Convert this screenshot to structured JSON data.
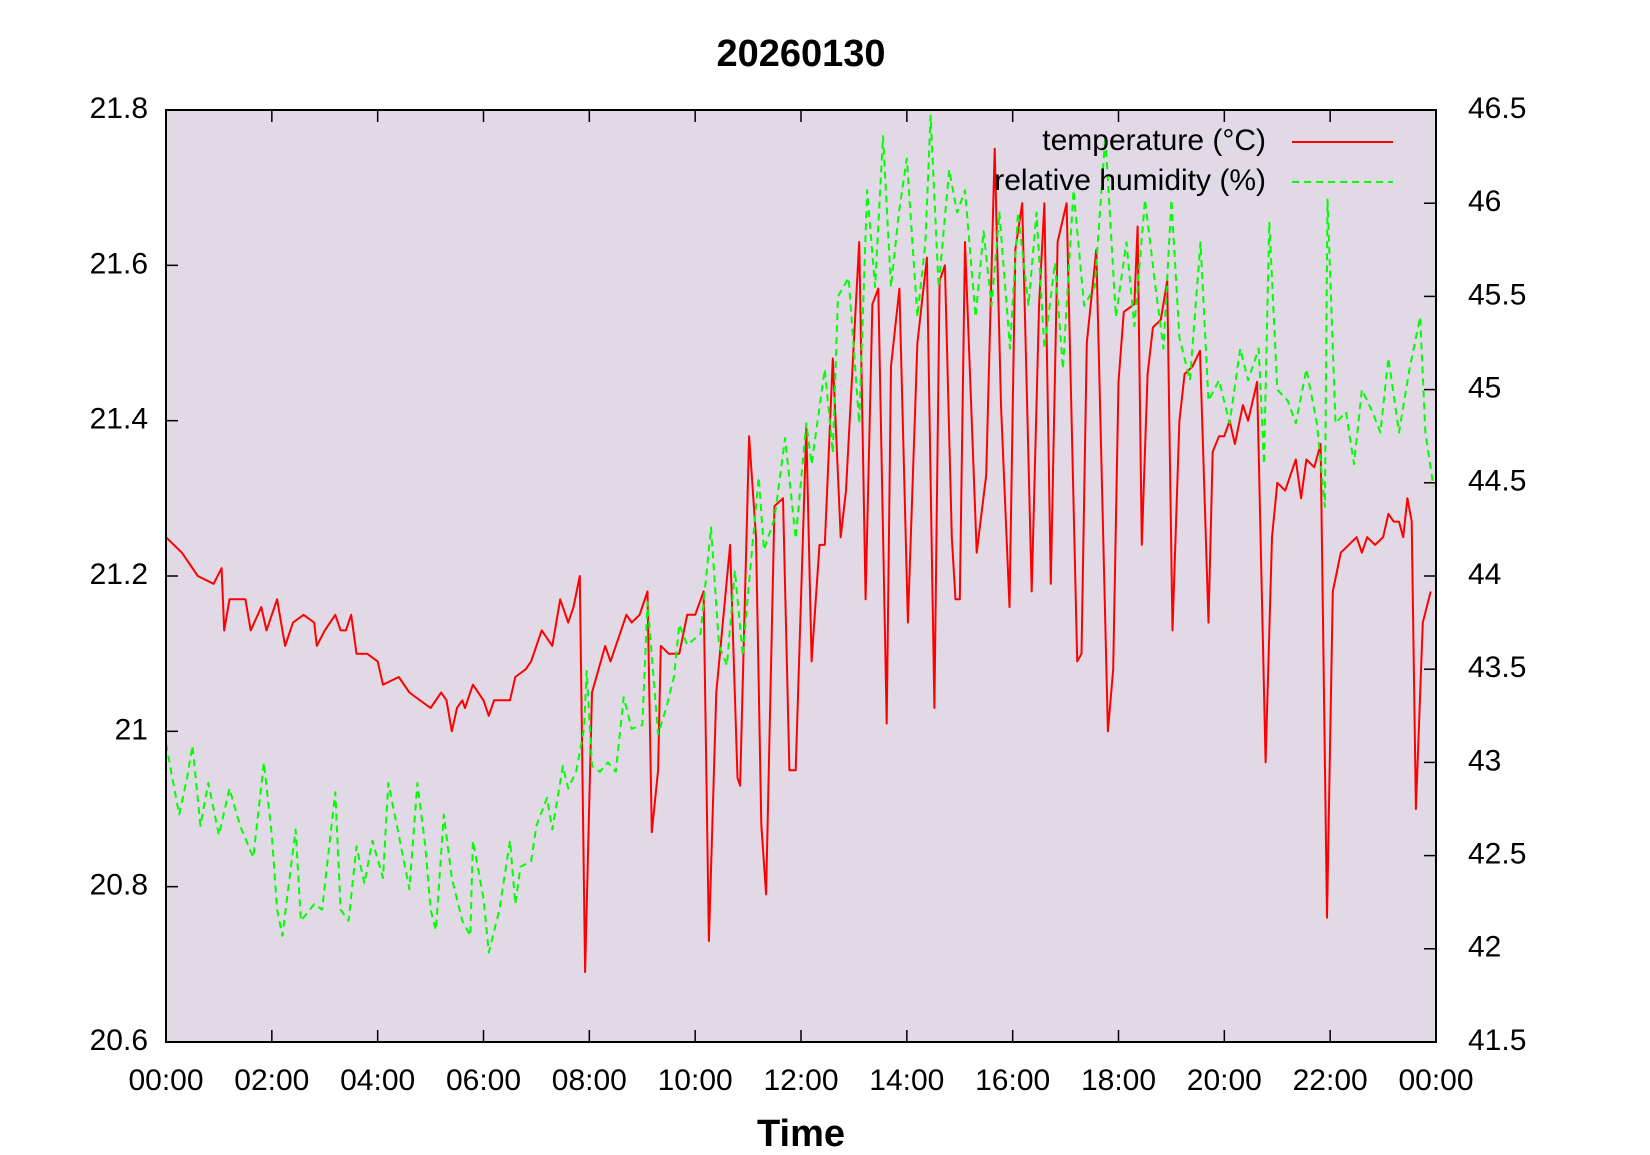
{
  "chart_data": {
    "type": "line",
    "title": "20260130",
    "xlabel": "Time",
    "xlim": [
      0,
      24
    ],
    "xticks": [
      {
        "value": 0,
        "label": "00:00"
      },
      {
        "value": 2,
        "label": "02:00"
      },
      {
        "value": 4,
        "label": "04:00"
      },
      {
        "value": 6,
        "label": "06:00"
      },
      {
        "value": 8,
        "label": "08:00"
      },
      {
        "value": 10,
        "label": "10:00"
      },
      {
        "value": 12,
        "label": "12:00"
      },
      {
        "value": 14,
        "label": "14:00"
      },
      {
        "value": 16,
        "label": "16:00"
      },
      {
        "value": 18,
        "label": "18:00"
      },
      {
        "value": 20,
        "label": "20:00"
      },
      {
        "value": 22,
        "label": "22:00"
      },
      {
        "value": 24,
        "label": "00:00"
      }
    ],
    "ylim": [
      20.6,
      21.8
    ],
    "yticks": [
      20.6,
      20.8,
      21,
      21.2,
      21.4,
      21.6,
      21.8
    ],
    "y2lim": [
      41.5,
      46.5
    ],
    "y2ticks": [
      41.5,
      42,
      42.5,
      43,
      43.5,
      44,
      44.5,
      45,
      45.5,
      46,
      46.5
    ],
    "legend": "top-right",
    "background": "#e1d9e6",
    "series": [
      {
        "name": "temperature (°C)",
        "color": "#ff0000",
        "dashed": false,
        "x": [
          0,
          0.3,
          0.6,
          0.9,
          1.05,
          1.1,
          1.2,
          1.5,
          1.6,
          1.8,
          1.9,
          2.1,
          2.25,
          2.4,
          2.6,
          2.8,
          2.85,
          3.0,
          3.2,
          3.3,
          3.4,
          3.5,
          3.6,
          3.8,
          4.0,
          4.1,
          4.4,
          4.6,
          4.8,
          5.0,
          5.2,
          5.3,
          5.4,
          5.5,
          5.6,
          5.65,
          5.8,
          6.0,
          6.1,
          6.2,
          6.5,
          6.6,
          6.8,
          6.9,
          7.1,
          7.3,
          7.45,
          7.6,
          7.7,
          7.82,
          7.92,
          8.05,
          8.3,
          8.4,
          8.5,
          8.7,
          8.8,
          8.95,
          9.1,
          9.18,
          9.3,
          9.35,
          9.5,
          9.7,
          9.85,
          10.0,
          10.16,
          10.26,
          10.4,
          10.66,
          10.8,
          10.85,
          11.02,
          11.15,
          11.25,
          11.34,
          11.5,
          11.66,
          11.78,
          11.9,
          12.1,
          12.2,
          12.35,
          12.45,
          12.6,
          12.75,
          12.85,
          13.1,
          13.22,
          13.35,
          13.46,
          13.62,
          13.7,
          13.86,
          14.02,
          14.2,
          14.38,
          14.52,
          14.62,
          14.72,
          14.85,
          14.92,
          15.0,
          15.1,
          15.2,
          15.32,
          15.5,
          15.66,
          15.78,
          15.94,
          16.05,
          16.18,
          16.36,
          16.5,
          16.6,
          16.72,
          16.85,
          17.02,
          17.22,
          17.3,
          17.4,
          17.58,
          17.8,
          17.9,
          18.0,
          18.1,
          18.3,
          18.36,
          18.44,
          18.55,
          18.65,
          18.8,
          18.92,
          19.02,
          19.15,
          19.25,
          19.4,
          19.54,
          19.7,
          19.78,
          19.9,
          20.0,
          20.1,
          20.2,
          20.35,
          20.45,
          20.62,
          20.78,
          20.9,
          21.0,
          21.15,
          21.35,
          21.45,
          21.55,
          21.7,
          21.82,
          21.94,
          22.05,
          22.2,
          22.35,
          22.5,
          22.6,
          22.7,
          22.85,
          23.0,
          23.1,
          23.2,
          23.3,
          23.38,
          23.46,
          23.54,
          23.62,
          23.75,
          23.9
        ],
        "values": [
          21.25,
          21.23,
          21.2,
          21.19,
          21.21,
          21.13,
          21.17,
          21.17,
          21.13,
          21.16,
          21.13,
          21.17,
          21.11,
          21.14,
          21.15,
          21.14,
          21.11,
          21.13,
          21.15,
          21.13,
          21.13,
          21.15,
          21.1,
          21.1,
          21.09,
          21.06,
          21.07,
          21.05,
          21.04,
          21.03,
          21.05,
          21.04,
          21.0,
          21.03,
          21.04,
          21.03,
          21.06,
          21.04,
          21.02,
          21.04,
          21.04,
          21.07,
          21.08,
          21.09,
          21.13,
          21.11,
          21.17,
          21.14,
          21.16,
          21.2,
          20.69,
          21.05,
          21.11,
          21.09,
          21.11,
          21.15,
          21.14,
          21.15,
          21.18,
          20.87,
          20.95,
          21.11,
          21.1,
          21.1,
          21.15,
          21.15,
          21.18,
          20.73,
          21.05,
          21.24,
          20.94,
          20.93,
          21.38,
          21.25,
          20.88,
          20.79,
          21.29,
          21.3,
          20.95,
          20.95,
          21.39,
          21.09,
          21.24,
          21.24,
          21.48,
          21.25,
          21.31,
          21.63,
          21.17,
          21.55,
          21.57,
          21.01,
          21.47,
          21.57,
          21.14,
          21.5,
          21.61,
          21.03,
          21.58,
          21.6,
          21.25,
          21.17,
          21.17,
          21.63,
          21.45,
          21.23,
          21.33,
          21.75,
          21.42,
          21.16,
          21.62,
          21.68,
          21.18,
          21.55,
          21.68,
          21.19,
          21.63,
          21.68,
          21.09,
          21.1,
          21.5,
          21.62,
          21.0,
          21.08,
          21.45,
          21.54,
          21.55,
          21.65,
          21.24,
          21.46,
          21.52,
          21.53,
          21.58,
          21.13,
          21.4,
          21.46,
          21.47,
          21.49,
          21.14,
          21.36,
          21.38,
          21.38,
          21.4,
          21.37,
          21.42,
          21.4,
          21.45,
          20.96,
          21.25,
          21.32,
          21.31,
          21.35,
          21.3,
          21.35,
          21.34,
          21.37,
          20.76,
          21.18,
          21.23,
          21.24,
          21.25,
          21.23,
          21.25,
          21.24,
          21.25,
          21.28,
          21.27,
          21.27,
          21.25,
          21.3,
          21.27,
          20.9,
          21.14,
          21.18
        ]
      },
      {
        "name": "relative humidity (%)",
        "color": "#00ff00",
        "dashed": true,
        "axis": "y2",
        "x": [
          0,
          0.25,
          0.4,
          0.5,
          0.65,
          0.8,
          1.0,
          1.2,
          1.4,
          1.65,
          1.85,
          2.0,
          2.1,
          2.2,
          2.45,
          2.55,
          2.8,
          2.95,
          3.2,
          3.3,
          3.45,
          3.6,
          3.75,
          3.9,
          4.1,
          4.2,
          4.4,
          4.6,
          4.75,
          4.9,
          5.0,
          5.1,
          5.25,
          5.4,
          5.6,
          5.75,
          5.8,
          6.0,
          6.1,
          6.3,
          6.5,
          6.6,
          6.7,
          6.9,
          7.0,
          7.2,
          7.3,
          7.5,
          7.6,
          7.75,
          7.9,
          7.95,
          8.05,
          8.2,
          8.35,
          8.5,
          8.65,
          8.8,
          9.0,
          9.1,
          9.3,
          9.45,
          9.6,
          9.7,
          9.85,
          10.1,
          10.3,
          10.45,
          10.6,
          10.75,
          10.9,
          11.0,
          11.2,
          11.3,
          11.5,
          11.7,
          11.9,
          12.1,
          12.2,
          12.45,
          12.6,
          12.7,
          12.9,
          13.1,
          13.25,
          13.4,
          13.55,
          13.7,
          13.85,
          14.0,
          14.2,
          14.35,
          14.45,
          14.6,
          14.8,
          14.95,
          15.1,
          15.3,
          15.45,
          15.6,
          15.75,
          15.95,
          16.1,
          16.3,
          16.45,
          16.6,
          16.8,
          16.95,
          17.15,
          17.35,
          17.55,
          17.75,
          17.95,
          18.15,
          18.3,
          18.5,
          18.7,
          18.85,
          19.0,
          19.15,
          19.35,
          19.55,
          19.7,
          19.9,
          20.1,
          20.3,
          20.45,
          20.65,
          20.75,
          20.85,
          21.0,
          21.2,
          21.35,
          21.55,
          21.75,
          21.9,
          21.95,
          22.1,
          22.3,
          22.45,
          22.6,
          22.8,
          22.95,
          23.1,
          23.3,
          23.5,
          23.7,
          23.8,
          23.95
        ],
        "values": [
          43.1,
          42.72,
          42.92,
          43.09,
          42.66,
          42.89,
          42.61,
          42.86,
          42.66,
          42.49,
          43.0,
          42.61,
          42.21,
          42.07,
          42.64,
          42.15,
          42.24,
          42.21,
          42.84,
          42.21,
          42.15,
          42.55,
          42.35,
          42.58,
          42.38,
          42.89,
          42.61,
          42.32,
          42.89,
          42.55,
          42.21,
          42.1,
          42.72,
          42.38,
          42.15,
          42.07,
          42.58,
          42.27,
          41.98,
          42.21,
          42.58,
          42.24,
          42.44,
          42.47,
          42.66,
          42.81,
          42.64,
          42.98,
          42.86,
          42.95,
          43.18,
          43.49,
          42.98,
          42.95,
          43.0,
          42.95,
          43.35,
          43.18,
          43.2,
          43.86,
          43.15,
          43.29,
          43.46,
          43.74,
          43.63,
          43.69,
          44.26,
          43.63,
          43.52,
          44.03,
          43.57,
          43.91,
          44.53,
          44.14,
          44.31,
          44.74,
          44.2,
          44.82,
          44.6,
          45.11,
          44.66,
          45.5,
          45.6,
          44.82,
          46.07,
          45.55,
          46.36,
          45.55,
          45.95,
          46.24,
          45.39,
          45.79,
          46.47,
          45.55,
          46.18,
          45.95,
          46.07,
          45.39,
          45.85,
          45.45,
          45.95,
          45.22,
          45.95,
          45.45,
          45.95,
          45.22,
          45.68,
          45.11,
          46.07,
          45.45,
          45.55,
          46.36,
          45.39,
          45.79,
          45.34,
          46.02,
          45.55,
          45.22,
          46.02,
          45.28,
          45.05,
          45.79,
          44.94,
          45.05,
          44.82,
          45.22,
          45.05,
          45.22,
          44.6,
          45.9,
          45.0,
          44.94,
          44.82,
          45.11,
          44.82,
          44.37,
          46.02,
          44.82,
          44.88,
          44.6,
          45.0,
          44.88,
          44.77,
          45.17,
          44.77,
          45.11,
          45.39,
          44.77,
          44.48
        ]
      }
    ]
  }
}
